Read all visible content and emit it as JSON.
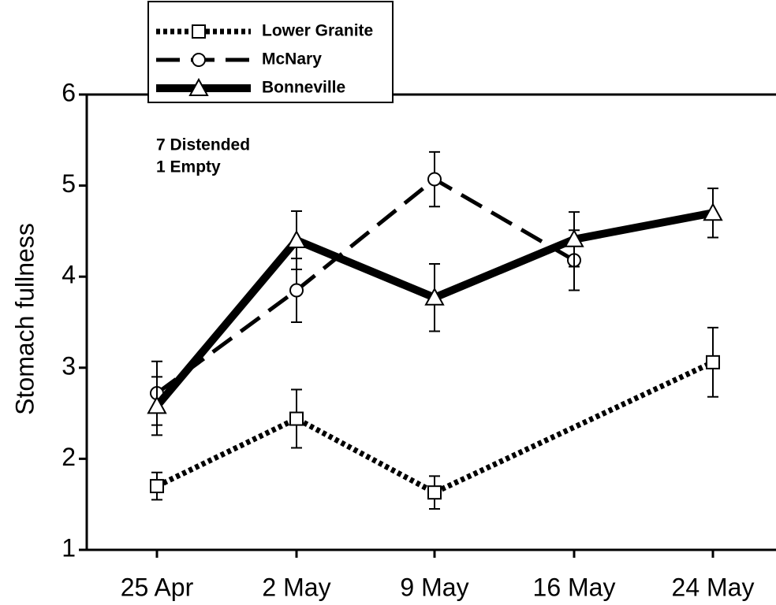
{
  "chart_data": {
    "type": "line",
    "y_label": "Stomach fullness",
    "annotations": [
      "7 Distended",
      "1 Empty"
    ],
    "categories": [
      "25 Apr",
      "2 May",
      "9 May",
      "16 May",
      "24 May"
    ],
    "ylim": [
      1,
      6
    ],
    "yticks": [
      1,
      2,
      3,
      4,
      5,
      6
    ],
    "legend": "top-left",
    "series": [
      {
        "name": "Lower Granite",
        "color": "#000000",
        "line_style": "dotted",
        "marker": "square",
        "x": [
          "25 Apr",
          "2 May",
          "9 May",
          "24 May"
        ],
        "values": [
          1.7,
          2.44,
          1.63,
          3.06
        ],
        "errors": [
          0.15,
          0.32,
          0.18,
          0.38
        ]
      },
      {
        "name": "McNary",
        "color": "#000000",
        "line_style": "dashed",
        "marker": "circle",
        "x": [
          "25 Apr",
          "2 May",
          "9 May",
          "16 May"
        ],
        "values": [
          2.72,
          3.85,
          5.07,
          4.18
        ],
        "errors": [
          0.35,
          0.35,
          0.3,
          0.33
        ]
      },
      {
        "name": "Bonneville",
        "color": "#000000",
        "line_style": "solid",
        "marker": "triangle",
        "x": [
          "25 Apr",
          "2 May",
          "9 May",
          "16 May",
          "24 May"
        ],
        "values": [
          2.58,
          4.4,
          3.77,
          4.41,
          4.7
        ],
        "errors": [
          0.32,
          0.32,
          0.37,
          0.3,
          0.27
        ]
      }
    ]
  }
}
